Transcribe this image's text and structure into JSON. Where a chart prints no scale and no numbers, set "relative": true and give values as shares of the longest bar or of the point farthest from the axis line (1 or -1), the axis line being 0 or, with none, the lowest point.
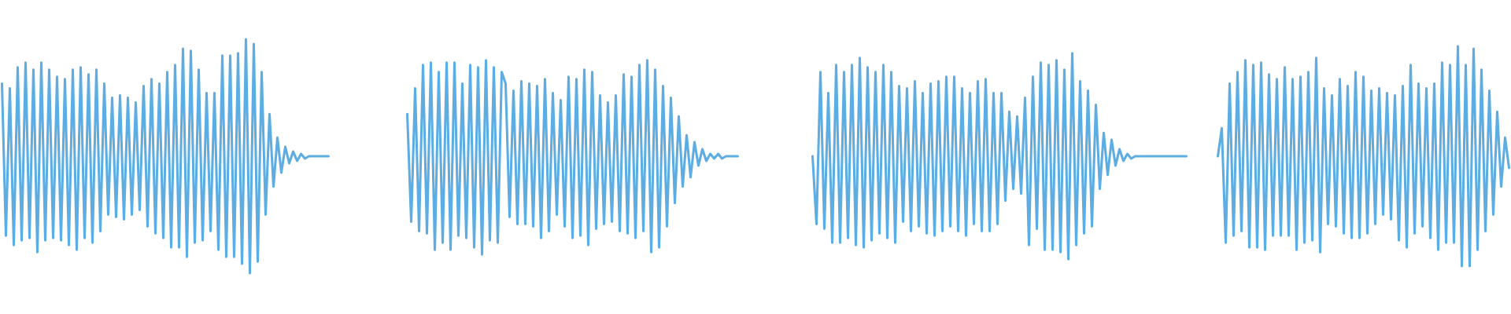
{
  "chart_data": {
    "type": "line",
    "relative": true,
    "categories": [
      null,
      null,
      null,
      null,
      null,
      null,
      null,
      null,
      null,
      null,
      null,
      null,
      null,
      null,
      null,
      null,
      null,
      null,
      null,
      null,
      null,
      null,
      null,
      null,
      null,
      null,
      null,
      null,
      null,
      null,
      null,
      null,
      null,
      null,
      null,
      null,
      null,
      null,
      null,
      null,
      null,
      null,
      null,
      null,
      null,
      null,
      null,
      null,
      null,
      null,
      null,
      null,
      null,
      null,
      null,
      null,
      null,
      null,
      null,
      null,
      null,
      null,
      null,
      null,
      null,
      null,
      null,
      null,
      null,
      null,
      null,
      null,
      null,
      null,
      null,
      null,
      null,
      null,
      null,
      null,
      null,
      null,
      null,
      null,
      null,
      null,
      null,
      null,
      null,
      null,
      null,
      null,
      null,
      null,
      null,
      null,
      null,
      null,
      null,
      null,
      null,
      null,
      null,
      null,
      null,
      null,
      null,
      null,
      null,
      null,
      null,
      null,
      null,
      null,
      null,
      null,
      null,
      null,
      null,
      null,
      null,
      null,
      null,
      null,
      null,
      null,
      null,
      null,
      null,
      null,
      null,
      null,
      null,
      null,
      null,
      null,
      null,
      null,
      null,
      null,
      null,
      null,
      null,
      null,
      null,
      null,
      null,
      null,
      null,
      null,
      null,
      null,
      null,
      null,
      null,
      null,
      null,
      null,
      null,
      null,
      null,
      null,
      null,
      null,
      null,
      null,
      null,
      null,
      null,
      null,
      null,
      null,
      null,
      null,
      null,
      null,
      null,
      null,
      null,
      null,
      null,
      null,
      null,
      null,
      null,
      null,
      null,
      null,
      null,
      null,
      null,
      null,
      null,
      null,
      null,
      null,
      null,
      null,
      null,
      null,
      null,
      null,
      null,
      null,
      null,
      null,
      null,
      null,
      null,
      null,
      null,
      null,
      null,
      null,
      null,
      null,
      null,
      null,
      null,
      null,
      null,
      null,
      null,
      null,
      null,
      null,
      null,
      null,
      null,
      null,
      null,
      null,
      null,
      null,
      null,
      null,
      null,
      null,
      null,
      null,
      null,
      null,
      null,
      null,
      null,
      null,
      null,
      null,
      null,
      null,
      null,
      null,
      null,
      null,
      null,
      null,
      null,
      null,
      null,
      null,
      null,
      null,
      null,
      null,
      null,
      null,
      null,
      null,
      null,
      null,
      null,
      null,
      null,
      null,
      null,
      null,
      null,
      null,
      null,
      null,
      null,
      null,
      null,
      null,
      null,
      null,
      null,
      null,
      null,
      null,
      null,
      null,
      null,
      null,
      null,
      null,
      null,
      null,
      null,
      null,
      null,
      null,
      null,
      null,
      null,
      null,
      null,
      null,
      null,
      null,
      null,
      null,
      null,
      null,
      null,
      null,
      null,
      null,
      null,
      null,
      null,
      null,
      null,
      null,
      null,
      null,
      null,
      null,
      null,
      null,
      null,
      null,
      null,
      null,
      null,
      null,
      null,
      null,
      null,
      null,
      null,
      null,
      null,
      null,
      null,
      null,
      null,
      null,
      null,
      null,
      null,
      null,
      null,
      null,
      null,
      null,
      null,
      null,
      null,
      null,
      null,
      null,
      null,
      null,
      null,
      null,
      null,
      null,
      null,
      null,
      null,
      null,
      null,
      null,
      null,
      null,
      null,
      null,
      null,
      null,
      null,
      null,
      null,
      null
    ],
    "series": [
      {
        "color": "#5dade2",
        "values": [
          0.81,
          0.16,
          0.79,
          0.12,
          0.88,
          0.14,
          0.9,
          0.15,
          0.87,
          0.09,
          0.9,
          0.14,
          0.87,
          0.15,
          0.84,
          0.14,
          0.83,
          0.12,
          0.87,
          0.1,
          0.88,
          0.15,
          0.85,
          0.13,
          0.87,
          0.18,
          0.81,
          0.25,
          0.75,
          0.24,
          0.76,
          0.23,
          0.75,
          0.25,
          0.73,
          0.27,
          0.8,
          0.2,
          0.83,
          0.17,
          0.81,
          0.15,
          0.86,
          0.11,
          0.89,
          0.11,
          0.96,
          0.07,
          0.95,
          0.13,
          0.87,
          0.14,
          0.77,
          0.18,
          0.77,
          0.1,
          0.93,
          0.07,
          0.93,
          0.07,
          0.94,
          0.04,
          1.0,
          0.0,
          0.98,
          0.05,
          0.86,
          0.25,
          0.68,
          0.37,
          0.58,
          0.43,
          0.54,
          0.47,
          0.52,
          0.48,
          0.51,
          0.49,
          0.5,
          0.5,
          0.5,
          0.5,
          0.5,
          0.5,
          null,
          null,
          null,
          null,
          null,
          null,
          null,
          null,
          null,
          null,
          null,
          null,
          null,
          null,
          null,
          null,
          null,
          null,
          null,
          null,
          null,
          null,
          null,
          null,
          null,
          null,
          null,
          null,
          null,
          null,
          null,
          null,
          null,
          null,
          null,
          null,
          null,
          null,
          null,
          null,
          null,
          null,
          null,
          null,
          null,
          null,
          null,
          null,
          null,
          null,
          null,
          null,
          null,
          null,
          null,
          null,
          null,
          null,
          null,
          null,
          null,
          null,
          null,
          null,
          null,
          null,
          null,
          null,
          null,
          null,
          null,
          null,
          null,
          null,
          null,
          null,
          null,
          null,
          null,
          null,
          null,
          null,
          null,
          null,
          null,
          null,
          null,
          null,
          null,
          null,
          null,
          null,
          null,
          null,
          null,
          null,
          null,
          null,
          null,
          null,
          null,
          null,
          null,
          null,
          null,
          null,
          null,
          null,
          null,
          null,
          null,
          null,
          null,
          null,
          null,
          null,
          null,
          null,
          null,
          null,
          null,
          null,
          null,
          null,
          null,
          null,
          null,
          null,
          null,
          null,
          null,
          null,
          null,
          null,
          null,
          null,
          null,
          null,
          null,
          null,
          null,
          null,
          null,
          null,
          null,
          null,
          null,
          null,
          null,
          null,
          null,
          null,
          null,
          null,
          null,
          null,
          null,
          null,
          null,
          null,
          null,
          null,
          null,
          null,
          null,
          null,
          null,
          null,
          null,
          null,
          null,
          null,
          null,
          null,
          null,
          null,
          null,
          null,
          null,
          null,
          null,
          null,
          null,
          null,
          null,
          null,
          null,
          null,
          null,
          null,
          null,
          null,
          null,
          null,
          null,
          null,
          null,
          null,
          null,
          null,
          null,
          null,
          null,
          null,
          null,
          null,
          null,
          null,
          null,
          null,
          null,
          null,
          null,
          null,
          null,
          null,
          null,
          null,
          null,
          null,
          null,
          null,
          null,
          null,
          null,
          null,
          null,
          null,
          null,
          null,
          null,
          null,
          null,
          null,
          null,
          null,
          null,
          null,
          null,
          null,
          null,
          null,
          null,
          null,
          null,
          null,
          null,
          null,
          null,
          null,
          null,
          null,
          null,
          null,
          null,
          null,
          null,
          null,
          null,
          null,
          null,
          null,
          null,
          null,
          null,
          null,
          null,
          null,
          null,
          null,
          null,
          null,
          null,
          null,
          null,
          null,
          null,
          null,
          null,
          null,
          null,
          null,
          null,
          null,
          null,
          null,
          null,
          null,
          null,
          null,
          null,
          null,
          null,
          null,
          null,
          null,
          null,
          null,
          null,
          null
        ]
      },
      {
        "color": "#5dade2",
        "values": [
          null,
          null,
          null,
          null,
          null,
          null,
          null,
          null,
          null,
          null,
          null,
          null,
          null,
          null,
          null,
          null,
          null,
          null,
          null,
          null,
          null,
          null,
          null,
          null,
          null,
          null,
          null,
          null,
          null,
          null,
          null,
          null,
          null,
          null,
          null,
          null,
          null,
          null,
          null,
          null,
          null,
          null,
          null,
          null,
          null,
          null,
          null,
          null,
          null,
          null,
          null,
          null,
          null,
          null,
          null,
          null,
          null,
          null,
          null,
          null,
          null,
          null,
          null,
          null,
          null,
          null,
          null,
          null,
          null,
          null,
          null,
          null,
          null,
          null,
          null,
          null,
          null,
          null,
          null,
          null,
          null,
          null,
          null,
          null,
          null,
          null,
          null,
          null,
          null,
          null,
          null,
          null,
          null,
          null,
          null,
          null,
          null,
          null,
          null,
          null,
          null,
          null,
          null,
          0.68,
          0.22,
          0.79,
          0.18,
          0.89,
          0.17,
          0.9,
          0.1,
          0.86,
          0.13,
          0.9,
          0.1,
          0.9,
          0.16,
          0.81,
          0.15,
          0.89,
          0.11,
          0.88,
          0.08,
          0.91,
          0.14,
          0.88,
          0.13,
          0.86,
          0.81,
          0.24,
          0.78,
          0.21,
          0.82,
          0.21,
          0.81,
          0.2,
          0.8,
          0.15,
          0.83,
          0.18,
          0.77,
          0.25,
          0.74,
          0.2,
          0.84,
          0.15,
          0.83,
          0.16,
          0.87,
          0.12,
          0.86,
          0.19,
          0.76,
          0.21,
          0.73,
          0.22,
          0.76,
          0.18,
          0.85,
          0.17,
          0.84,
          0.15,
          0.89,
          0.18,
          0.91,
          0.09,
          0.87,
          0.11,
          0.8,
          0.2,
          0.75,
          0.3,
          0.67,
          0.37,
          0.59,
          0.41,
          0.56,
          0.46,
          0.53,
          0.48,
          0.51,
          0.49,
          0.51,
          0.49,
          0.5,
          0.5,
          0.5,
          0.5,
          null,
          null,
          null,
          null,
          null,
          null,
          null,
          null,
          null,
          null,
          null,
          null,
          null,
          null,
          null,
          null,
          null,
          null,
          null,
          null,
          null,
          null,
          null,
          null,
          null,
          null,
          null,
          null,
          null,
          null,
          null,
          null,
          null,
          null,
          null,
          null,
          null,
          null,
          null,
          null,
          null,
          null,
          null,
          null,
          null,
          null,
          null,
          null,
          null,
          null,
          null,
          null,
          null,
          null,
          null,
          null,
          null,
          null,
          null,
          null,
          null,
          null,
          null,
          null,
          null,
          null,
          null,
          null,
          null,
          null,
          null,
          null,
          null,
          null,
          null,
          null,
          null,
          null,
          null,
          null,
          null,
          null,
          null,
          null,
          null,
          null,
          null,
          null,
          null,
          null,
          null,
          null,
          null,
          null,
          null,
          null,
          null,
          null,
          null,
          null,
          null,
          null,
          null,
          null,
          null,
          null,
          null,
          null,
          null,
          null,
          null,
          null,
          null,
          null,
          null,
          null,
          null,
          null,
          null,
          null,
          null,
          null,
          null,
          null,
          null,
          null,
          null,
          null,
          null,
          null,
          null,
          null,
          null,
          null,
          null,
          null,
          null,
          null,
          null,
          null,
          null,
          null,
          null,
          null,
          null,
          null,
          null,
          null,
          null,
          null,
          null,
          null,
          null,
          null,
          null,
          null,
          null,
          null,
          null,
          null,
          null,
          null,
          null,
          null,
          null,
          null,
          null,
          null,
          null,
          null,
          null,
          null,
          null,
          null,
          null,
          null,
          null,
          null,
          null,
          null,
          null,
          null,
          null,
          null,
          null,
          null,
          null,
          null,
          null,
          null,
          null,
          null,
          null,
          null,
          null,
          null
        ]
      },
      {
        "color": "#5dade2",
        "values": [
          null,
          null,
          null,
          null,
          null,
          null,
          null,
          null,
          null,
          null,
          null,
          null,
          null,
          null,
          null,
          null,
          null,
          null,
          null,
          null,
          null,
          null,
          null,
          null,
          null,
          null,
          null,
          null,
          null,
          null,
          null,
          null,
          null,
          null,
          null,
          null,
          null,
          null,
          null,
          null,
          null,
          null,
          null,
          null,
          null,
          null,
          null,
          null,
          null,
          null,
          null,
          null,
          null,
          null,
          null,
          null,
          null,
          null,
          null,
          null,
          null,
          null,
          null,
          null,
          null,
          null,
          null,
          null,
          null,
          null,
          null,
          null,
          null,
          null,
          null,
          null,
          null,
          null,
          null,
          null,
          null,
          null,
          null,
          null,
          null,
          null,
          null,
          null,
          null,
          null,
          null,
          null,
          null,
          null,
          null,
          null,
          null,
          null,
          null,
          null,
          null,
          null,
          null,
          null,
          null,
          null,
          null,
          null,
          null,
          null,
          null,
          null,
          null,
          null,
          null,
          null,
          null,
          null,
          null,
          null,
          null,
          null,
          null,
          null,
          null,
          null,
          null,
          null,
          null,
          null,
          null,
          null,
          null,
          null,
          null,
          null,
          null,
          null,
          null,
          null,
          null,
          null,
          null,
          null,
          null,
          null,
          null,
          null,
          null,
          null,
          null,
          null,
          null,
          null,
          null,
          null,
          null,
          null,
          null,
          null,
          null,
          null,
          null,
          null,
          null,
          null,
          null,
          null,
          null,
          null,
          null,
          null,
          null,
          null,
          null,
          null,
          null,
          null,
          null,
          null,
          null,
          null,
          null,
          null,
          null,
          null,
          null,
          null,
          null,
          null,
          null,
          null,
          null,
          null,
          null,
          null,
          null,
          null,
          null,
          null,
          null,
          null,
          null,
          null,
          null,
          null,
          0.5,
          0.21,
          0.86,
          0.19,
          0.77,
          0.13,
          0.89,
          0.13,
          0.86,
          0.15,
          0.89,
          0.12,
          0.92,
          0.11,
          0.88,
          0.14,
          0.86,
          0.17,
          0.89,
          0.15,
          0.86,
          0.13,
          0.8,
          0.22,
          0.79,
          0.18,
          0.82,
          0.2,
          0.77,
          0.17,
          0.81,
          0.16,
          0.82,
          0.18,
          0.84,
          0.2,
          0.84,
          0.18,
          0.79,
          0.16,
          0.77,
          0.21,
          0.82,
          0.18,
          0.83,
          0.18,
          0.77,
          0.21,
          0.77,
          0.31,
          0.69,
          0.36,
          0.67,
          0.34,
          0.75,
          0.12,
          0.84,
          0.19,
          0.9,
          0.1,
          0.89,
          0.1,
          0.91,
          0.09,
          0.87,
          0.06,
          0.94,
          0.12,
          0.82,
          0.17,
          0.78,
          0.2,
          0.72,
          0.36,
          0.6,
          0.42,
          0.57,
          0.46,
          0.53,
          0.48,
          0.51,
          0.49,
          0.5,
          0.5,
          0.5,
          0.5,
          0.5,
          0.5,
          0.5,
          0.5,
          0.5,
          0.5,
          0.5,
          0.5,
          0.5,
          0.5,
          null,
          null,
          null,
          null,
          null,
          null,
          null,
          null,
          null,
          null,
          null,
          null,
          null,
          null,
          null,
          null,
          null,
          null,
          null,
          null,
          null,
          null,
          null,
          null,
          null,
          null,
          null,
          null,
          null,
          null,
          null,
          null,
          null,
          null,
          null,
          null,
          null,
          null,
          null,
          null,
          null,
          null,
          null,
          null,
          null,
          null,
          null,
          null,
          null,
          null,
          null,
          null,
          null,
          null,
          null,
          null,
          null,
          null,
          null,
          null,
          null,
          null,
          null,
          null,
          null,
          null,
          null,
          null,
          null,
          null,
          null,
          null,
          null,
          null,
          null,
          null,
          null,
          null,
          null,
          null,
          null,
          null
        ]
      },
      {
        "color": "#5dade2",
        "values": [
          null,
          null,
          null,
          null,
          null,
          null,
          null,
          null,
          null,
          null,
          null,
          null,
          null,
          null,
          null,
          null,
          null,
          null,
          null,
          null,
          null,
          null,
          null,
          null,
          null,
          null,
          null,
          null,
          null,
          null,
          null,
          null,
          null,
          null,
          null,
          null,
          null,
          null,
          null,
          null,
          null,
          null,
          null,
          null,
          null,
          null,
          null,
          null,
          null,
          null,
          null,
          null,
          null,
          null,
          null,
          null,
          null,
          null,
          null,
          null,
          null,
          null,
          null,
          null,
          null,
          null,
          null,
          null,
          null,
          null,
          null,
          null,
          null,
          null,
          null,
          null,
          null,
          null,
          null,
          null,
          null,
          null,
          null,
          null,
          null,
          null,
          null,
          null,
          null,
          null,
          null,
          null,
          null,
          null,
          null,
          null,
          null,
          null,
          null,
          null,
          null,
          null,
          null,
          null,
          null,
          null,
          null,
          null,
          null,
          null,
          null,
          null,
          null,
          null,
          null,
          null,
          null,
          null,
          null,
          null,
          null,
          null,
          null,
          null,
          null,
          null,
          null,
          null,
          null,
          null,
          null,
          null,
          null,
          null,
          null,
          null,
          null,
          null,
          null,
          null,
          null,
          null,
          null,
          null,
          null,
          null,
          null,
          null,
          null,
          null,
          null,
          null,
          null,
          null,
          null,
          null,
          null,
          null,
          null,
          null,
          null,
          null,
          null,
          null,
          null,
          null,
          null,
          null,
          null,
          null,
          null,
          null,
          null,
          null,
          null,
          null,
          null,
          null,
          null,
          null,
          null,
          null,
          null,
          null,
          null,
          null,
          null,
          null,
          null,
          null,
          null,
          null,
          null,
          null,
          null,
          null,
          null,
          null,
          null,
          null,
          null,
          null,
          null,
          null,
          null,
          null,
          null,
          null,
          null,
          null,
          null,
          null,
          null,
          null,
          null,
          null,
          null,
          null,
          null,
          null,
          null,
          null,
          null,
          null,
          null,
          null,
          null,
          null,
          null,
          null,
          null,
          null,
          null,
          null,
          null,
          null,
          null,
          null,
          null,
          null,
          null,
          null,
          null,
          null,
          null,
          null,
          null,
          null,
          null,
          null,
          null,
          null,
          null,
          null,
          null,
          null,
          null,
          null,
          null,
          null,
          null,
          null,
          null,
          null,
          null,
          null,
          null,
          null,
          null,
          null,
          null,
          null,
          null,
          null,
          null,
          null,
          null,
          null,
          null,
          null,
          null,
          null,
          null,
          null,
          null,
          null,
          null,
          null,
          null,
          null,
          null,
          null,
          null,
          null,
          null,
          null,
          null,
          null,
          null,
          null,
          null,
          null,
          null,
          null,
          null,
          null,
          null,
          null,
          null,
          0.5,
          0.62,
          0.13,
          0.81,
          0.16,
          0.86,
          0.18,
          0.91,
          0.11,
          0.89,
          0.11,
          0.9,
          0.1,
          0.85,
          0.16,
          0.83,
          0.16,
          0.88,
          0.16,
          0.83,
          0.1,
          0.84,
          0.13,
          0.86,
          0.14,
          0.92,
          0.09,
          0.79,
          0.21,
          0.76,
          0.2,
          0.83,
          0.17,
          0.8,
          0.15,
          0.86,
          0.15,
          0.84,
          0.17,
          0.78,
          0.21,
          0.79,
          0.25,
          0.77,
          0.23,
          0.76,
          0.14,
          0.8,
          0.11,
          0.89,
          0.17,
          0.81,
          0.2,
          0.79,
          0.15,
          0.81,
          0.1,
          0.9,
          0.13,
          0.89,
          0.13,
          0.97,
          0.03,
          0.89,
          0.03,
          0.96,
          0.1,
          0.87,
          0.18,
          0.78,
          0.25,
          0.69,
          0.37,
          0.58,
          0.45
        ]
      }
    ]
  }
}
